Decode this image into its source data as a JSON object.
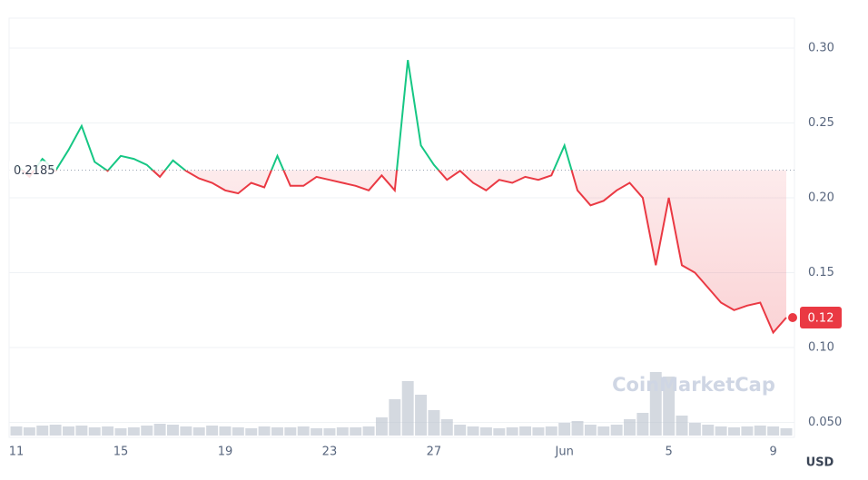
{
  "chart_data": {
    "type": "line",
    "categories": [
      "11",
      null,
      null,
      null,
      null,
      null,
      null,
      null,
      "15",
      null,
      null,
      null,
      null,
      null,
      null,
      null,
      "19",
      null,
      null,
      null,
      null,
      null,
      null,
      null,
      "23",
      null,
      null,
      null,
      null,
      null,
      null,
      null,
      "27",
      null,
      null,
      null,
      null,
      null,
      null,
      null,
      null,
      null,
      "Jun",
      null,
      null,
      null,
      null,
      null,
      null,
      null,
      "5",
      null,
      null,
      null,
      null,
      null,
      null,
      null,
      "9",
      null
    ],
    "series": [
      {
        "color": "#ea3943",
        "values": [
          0.222,
          0.214,
          0.226,
          0.218,
          0.232,
          0.248,
          0.224,
          0.218,
          0.228,
          0.226,
          0.222,
          0.214,
          0.225,
          0.218,
          0.213,
          0.21,
          0.205,
          0.203,
          0.21,
          0.207,
          0.228,
          0.208,
          0.208,
          0.214,
          0.212,
          0.21,
          0.208,
          0.205,
          0.215,
          0.205,
          0.292,
          0.235,
          0.222,
          0.212,
          0.218,
          0.21,
          0.205,
          0.212,
          0.21,
          0.214,
          0.212,
          0.215,
          0.235,
          0.205,
          0.195,
          0.198,
          0.205,
          0.21,
          0.2,
          0.155,
          0.2,
          0.155,
          0.15,
          0.14,
          0.13,
          0.125,
          0.128,
          0.13,
          0.11,
          0.12
        ]
      }
    ],
    "above_color": "#16c784",
    "baseline": 0.2185,
    "volume": {
      "color": "#b8bfcc",
      "values": [
        10,
        9,
        11,
        12,
        10,
        11,
        9,
        10,
        8,
        9,
        11,
        13,
        12,
        10,
        9,
        11,
        10,
        9,
        8,
        10,
        9,
        9,
        10,
        8,
        8,
        9,
        9,
        10,
        20,
        40,
        60,
        45,
        28,
        18,
        12,
        10,
        9,
        8,
        9,
        10,
        9,
        10,
        14,
        16,
        12,
        10,
        12,
        18,
        25,
        70,
        65,
        22,
        14,
        12,
        10,
        9,
        10,
        11,
        10,
        8
      ]
    },
    "ylim": [
      0.04,
      0.32
    ],
    "yticks": [
      {
        "value": 0.05,
        "label": "0.050"
      },
      {
        "value": 0.1,
        "label": "0.10"
      },
      0.15,
      {
        "value": 0.2,
        "label": "0.20"
      },
      0.25,
      {
        "value": 0.3,
        "label": "0.30"
      }
    ],
    "grid": true,
    "y_unit": "USD",
    "watermark": "CoinMarketCap"
  }
}
